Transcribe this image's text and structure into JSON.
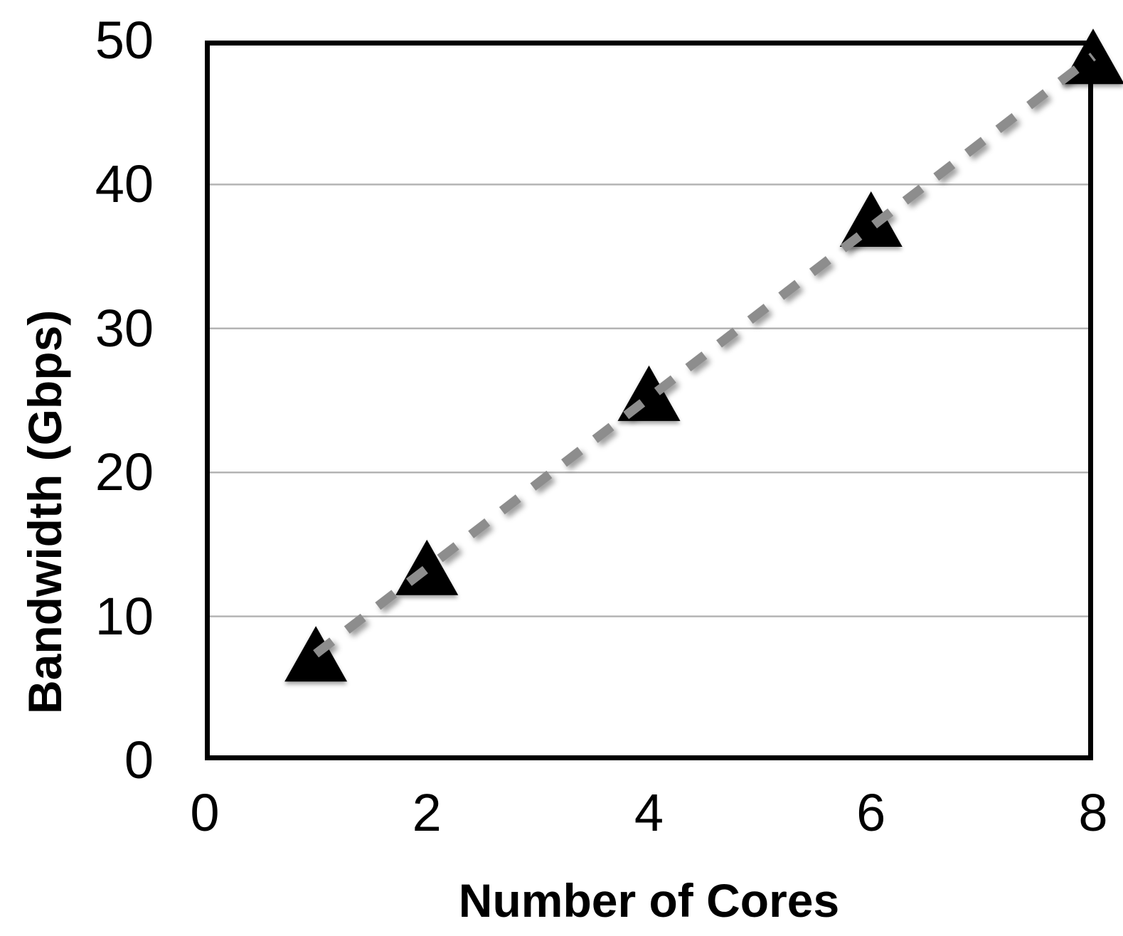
{
  "figure": {
    "background": "#ffffff",
    "text_color": "#000000"
  },
  "chart_data": {
    "type": "scatter",
    "title": "",
    "xlabel": "Number of Cores",
    "ylabel": "Bandwidth (Gbps)",
    "x": [
      1,
      2,
      4,
      6,
      8
    ],
    "y": [
      7.4,
      13.4,
      25.5,
      37.6,
      48.9
    ],
    "xlim": [
      0,
      8
    ],
    "ylim": [
      0,
      50
    ],
    "xticks": [
      "0",
      "2",
      "4",
      "6",
      "8"
    ],
    "yticks": [
      "0",
      "10",
      "20",
      "30",
      "40",
      "50"
    ],
    "grid": "horizontal",
    "gridline_values": [
      10,
      20,
      30,
      40
    ],
    "legend": "none",
    "marker": {
      "shape": "triangle-up",
      "color": "#000000"
    },
    "trendline": {
      "style": "dashed",
      "color": "#8d8d8d",
      "from": [
        1,
        7.4
      ],
      "to": [
        8,
        48.9
      ],
      "drawn_above_markers": true
    },
    "colors": {
      "gridline": "#b4b4b4",
      "frame": "#000000",
      "dash": "#8d8d8d",
      "marker": "#000000"
    }
  }
}
